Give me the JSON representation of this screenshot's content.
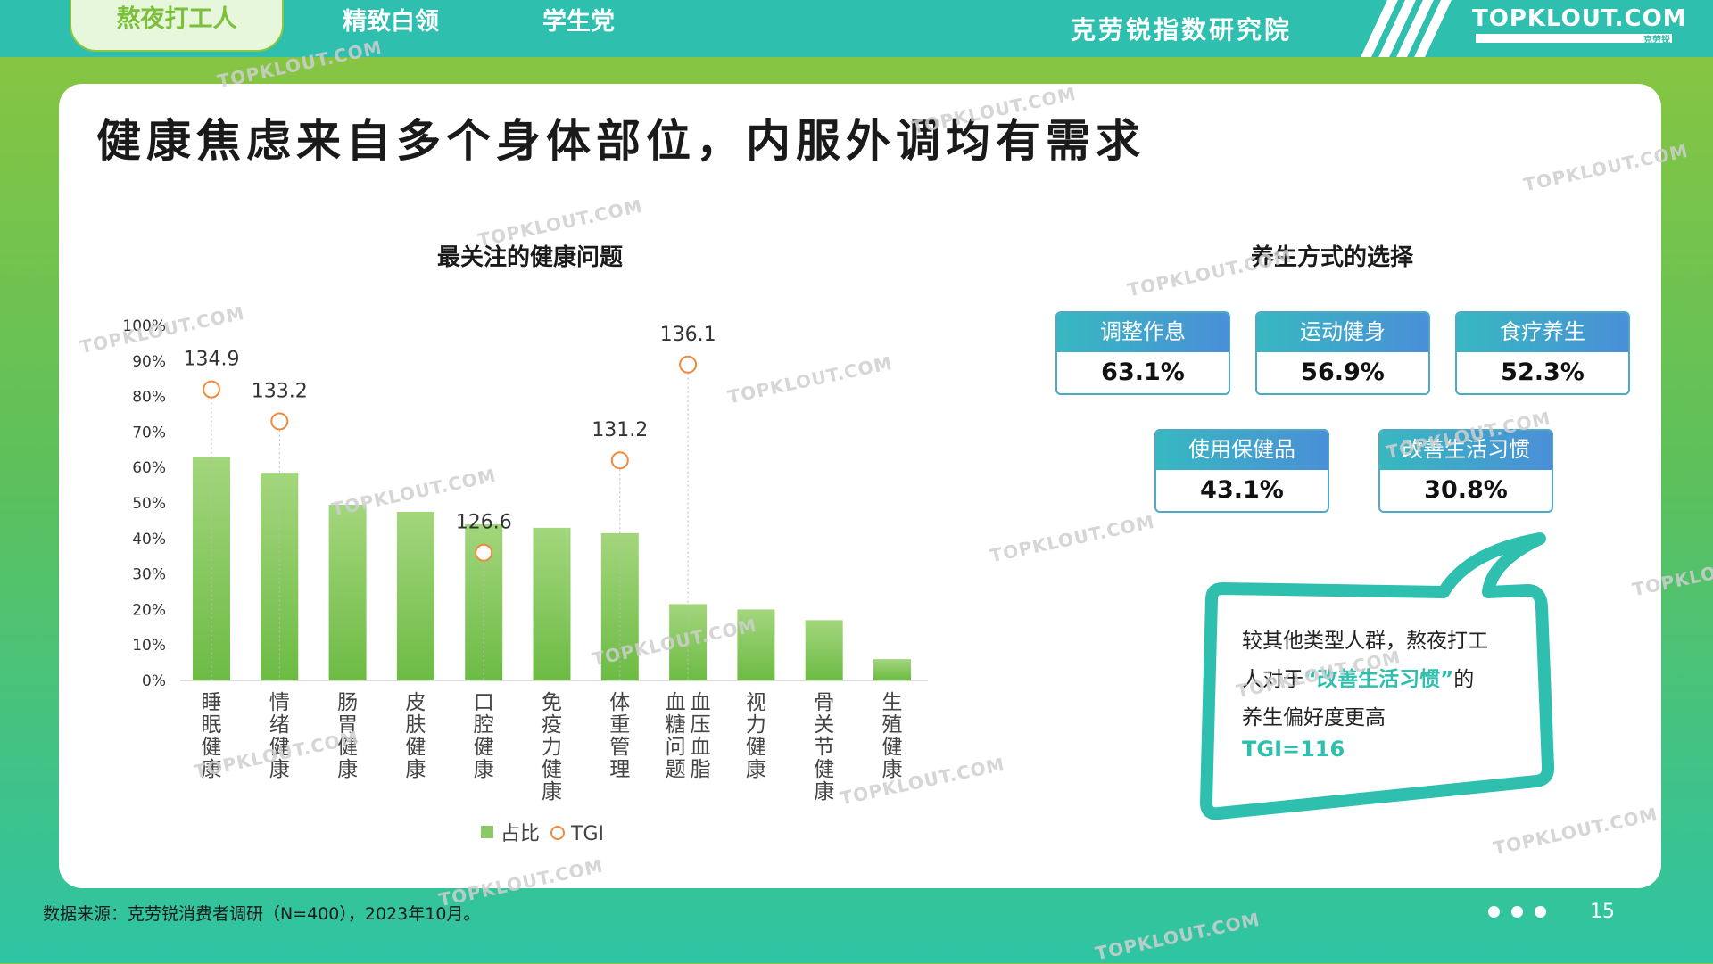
{
  "nav": {
    "tabs": [
      {
        "label": "熬夜打工人",
        "active": true
      },
      {
        "label": "精致白领",
        "active": false
      },
      {
        "label": "学生党",
        "active": false
      }
    ],
    "org_name": "克劳锐指数研究院",
    "logo_text": "TOPKLOUT.COM",
    "logo_subtext": "克劳锐"
  },
  "page_title": "健康焦虑来自多个身体部位，内服外调均有需求",
  "left_chart_title": "最关注的健康问题",
  "right_section_title": "养生方式的选择",
  "chart_data": {
    "type": "bar",
    "title": "最关注的健康问题",
    "categories": [
      "睡眠健康",
      "情绪健康",
      "肠胃健康",
      "皮肤健康",
      "口腔健康",
      "免疫力健康",
      "体重管理",
      "血压血脂血糖问题",
      "视力健康",
      "骨关节健康",
      "生殖健康"
    ],
    "category_lines": [
      [
        "睡眠健康"
      ],
      [
        "情绪健康"
      ],
      [
        "肠胃健康"
      ],
      [
        "皮肤健康"
      ],
      [
        "口腔健康"
      ],
      [
        "免疫力健康"
      ],
      [
        "体重管理"
      ],
      [
        "血糖问题",
        "血压血脂"
      ],
      [
        "视力健康"
      ],
      [
        "骨关节健康"
      ],
      [
        "生殖健康"
      ]
    ],
    "series": [
      {
        "name": "占比",
        "type": "bar",
        "values": [
          63,
          58.5,
          49.5,
          47.5,
          44,
          43,
          41.5,
          21.5,
          20,
          17,
          6
        ]
      },
      {
        "name": "TGI",
        "type": "point",
        "values": [
          134.9,
          133.2,
          null,
          null,
          126.6,
          null,
          131.2,
          136.1,
          null,
          null,
          null
        ],
        "labels": [
          "134.9",
          "133.2",
          "",
          "",
          "126.6",
          "",
          "131.2",
          "136.1",
          "",
          "",
          ""
        ]
      }
    ],
    "tgi_positions_pct": [
      82,
      73,
      null,
      null,
      36,
      null,
      62,
      89,
      null,
      null,
      null
    ],
    "y_ticks": [
      "0%",
      "10%",
      "20%",
      "30%",
      "40%",
      "50%",
      "60%",
      "70%",
      "80%",
      "90%",
      "100%"
    ],
    "ylim": [
      0,
      100
    ],
    "legend": {
      "items": [
        "占比",
        "TGI"
      ],
      "position": "bottom"
    },
    "colors": {
      "bar_top": "#a3d67c",
      "bar_bottom": "#6dbb45",
      "tgi": "#f08a3c"
    }
  },
  "methods": [
    {
      "label": "调整作息",
      "value": "63.1%"
    },
    {
      "label": "运动健身",
      "value": "56.9%"
    },
    {
      "label": "食疗养生",
      "value": "52.3%"
    },
    {
      "label": "使用保健品",
      "value": "43.1%"
    },
    {
      "label": "改善生活习惯",
      "value": "30.8%"
    }
  ],
  "callout": {
    "line1": "较其他类型人群，熬夜打工",
    "line2_pre": "人对于",
    "line2_highlight": "“改善生活习惯”",
    "line2_post": "的",
    "line3": "养生偏好度更高",
    "tgi_text": "TGI=116"
  },
  "footer": {
    "source": "数据来源：克劳锐消费者调研（N=400），2023年10月。",
    "page_number": "15"
  },
  "watermark_text": "TOPKLOUT.COM",
  "colors": {
    "teal": "#2ebfae",
    "green": "#8cc63f",
    "method_blue": "#4a8fd8"
  }
}
